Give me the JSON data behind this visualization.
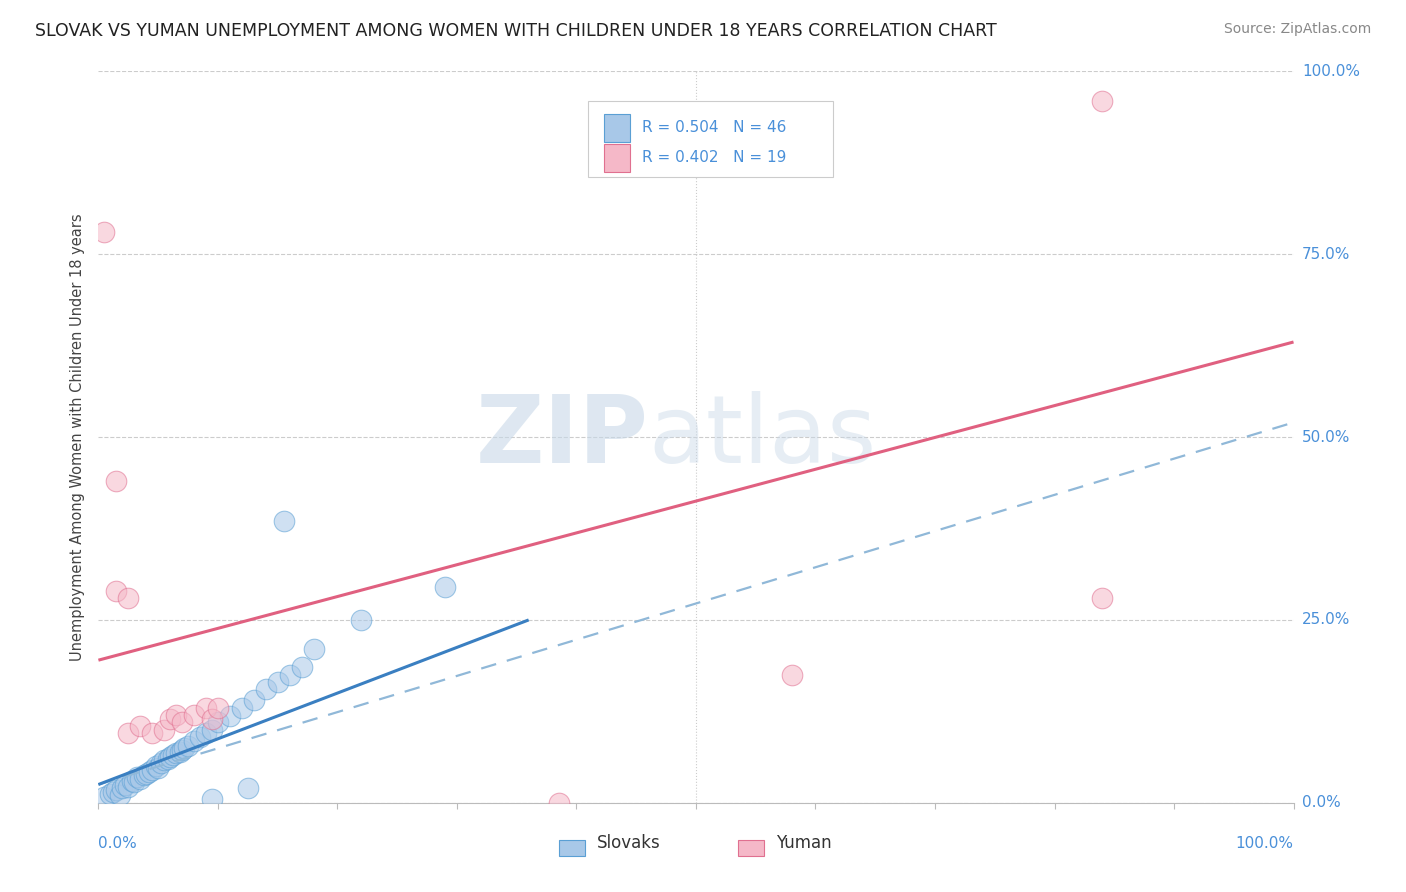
{
  "title": "SLOVAK VS YUMAN UNEMPLOYMENT AMONG WOMEN WITH CHILDREN UNDER 18 YEARS CORRELATION CHART",
  "source": "Source: ZipAtlas.com",
  "ylabel": "Unemployment Among Women with Children Under 18 years",
  "legend_slovak": "R = 0.504   N = 46",
  "legend_yuman": "R = 0.402   N = 19",
  "slovak_fill": "#a8c8e8",
  "slovak_edge": "#5a9fd4",
  "yuman_fill": "#f5b8c8",
  "yuman_edge": "#e07090",
  "slovak_line_color": "#3a7fc1",
  "yuman_line_color": "#e06080",
  "dashed_line_color": "#90b8d8",
  "background_color": "#ffffff",
  "grid_color": "#cccccc",
  "tick_label_color": "#4a90d9",
  "title_color": "#222222",
  "source_color": "#888888",
  "ylabel_color": "#444444",
  "slovak_x": [
    0.005,
    0.01,
    0.012,
    0.015,
    0.018,
    0.02,
    0.022,
    0.025,
    0.028,
    0.03,
    0.032,
    0.035,
    0.038,
    0.04,
    0.042,
    0.045,
    0.048,
    0.05,
    0.052,
    0.055,
    0.058,
    0.06,
    0.062,
    0.065,
    0.068,
    0.07,
    0.072,
    0.075,
    0.08,
    0.085,
    0.09,
    0.095,
    0.1,
    0.11,
    0.12,
    0.13,
    0.14,
    0.15,
    0.16,
    0.17,
    0.18,
    0.22,
    0.29,
    0.155,
    0.125,
    0.095
  ],
  "slovak_y": [
    0.008,
    0.012,
    0.015,
    0.018,
    0.01,
    0.02,
    0.025,
    0.022,
    0.03,
    0.028,
    0.035,
    0.032,
    0.038,
    0.04,
    0.042,
    0.045,
    0.05,
    0.048,
    0.055,
    0.058,
    0.06,
    0.062,
    0.065,
    0.068,
    0.07,
    0.072,
    0.075,
    0.078,
    0.085,
    0.09,
    0.095,
    0.1,
    0.11,
    0.118,
    0.13,
    0.14,
    0.155,
    0.165,
    0.175,
    0.185,
    0.21,
    0.25,
    0.295,
    0.385,
    0.02,
    0.005
  ],
  "yuman_x": [
    0.005,
    0.015,
    0.025,
    0.035,
    0.045,
    0.055,
    0.06,
    0.065,
    0.07,
    0.08,
    0.09,
    0.095,
    0.1,
    0.015,
    0.025,
    0.58,
    0.84,
    0.84,
    0.385
  ],
  "yuman_y": [
    0.78,
    0.44,
    0.095,
    0.105,
    0.095,
    0.1,
    0.115,
    0.12,
    0.11,
    0.12,
    0.13,
    0.115,
    0.13,
    0.29,
    0.28,
    0.175,
    0.28,
    0.96,
    0.0
  ],
  "slovak_line_x": [
    0.0,
    0.36
  ],
  "slovak_line_y": [
    0.025,
    0.25
  ],
  "dashed_line_x": [
    0.0,
    1.0
  ],
  "dashed_line_y": [
    0.025,
    0.52
  ],
  "yuman_line_x": [
    0.0,
    1.0
  ],
  "yuman_line_y": [
    0.195,
    0.63
  ],
  "xlim": [
    0.0,
    1.0
  ],
  "ylim": [
    0.0,
    1.0
  ],
  "yticks": [
    0.0,
    0.25,
    0.5,
    0.75,
    1.0
  ],
  "ytick_labels": [
    "0.0%",
    "25.0%",
    "50.0%",
    "75.0%",
    "100.0%"
  ],
  "watermark_zip": "ZIP",
  "watermark_atlas": "atlas"
}
